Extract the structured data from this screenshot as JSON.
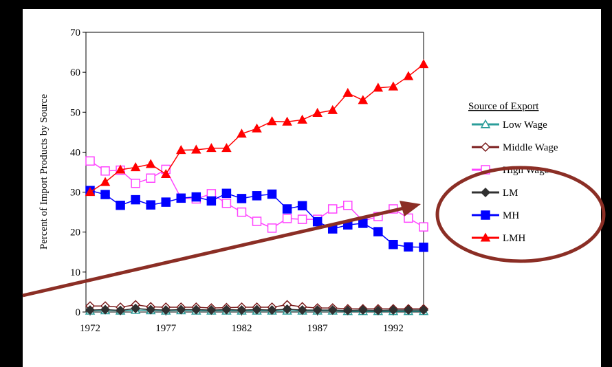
{
  "chart_data": {
    "type": "line",
    "title": "",
    "xlabel": "",
    "ylabel": "Percent of Import Products by Source",
    "xlim": [
      1972,
      1994
    ],
    "ylim": [
      0,
      70
    ],
    "x_ticks": [
      "1972",
      "1977",
      "1982",
      "1987",
      "1992"
    ],
    "y_ticks": [
      "0",
      "10",
      "20",
      "30",
      "40",
      "50",
      "60",
      "70"
    ],
    "x": [
      1972,
      1973,
      1974,
      1975,
      1976,
      1977,
      1978,
      1979,
      1980,
      1981,
      1982,
      1983,
      1984,
      1985,
      1986,
      1987,
      1988,
      1989,
      1990,
      1991,
      1992,
      1993,
      1994
    ],
    "legend_title": "Source of Export",
    "legend_position": "right",
    "series": [
      {
        "name": "Low Wage",
        "marker": "triangle-open",
        "color": "#2a9d9a",
        "values": [
          0.3,
          0.4,
          0.3,
          0.5,
          0.4,
          0.3,
          0.4,
          0.3,
          0.3,
          0.3,
          0.3,
          0.3,
          0.3,
          0.3,
          0.3,
          0.3,
          0.3,
          0.2,
          0.2,
          0.2,
          0.2,
          0.2,
          0.2
        ]
      },
      {
        "name": "Middle Wage",
        "marker": "diamond-open",
        "color": "#7b1d1d",
        "values": [
          1.5,
          1.5,
          1.2,
          1.8,
          1.3,
          1.2,
          1.2,
          1.2,
          1.0,
          1.1,
          1.2,
          1.2,
          1.2,
          1.8,
          1.3,
          1.0,
          1.0,
          0.8,
          0.8,
          0.8,
          0.8,
          0.8,
          0.8
        ]
      },
      {
        "name": "High Wage",
        "marker": "square-open",
        "color": "#ff44ff",
        "values": [
          37.8,
          35.3,
          35.5,
          32.2,
          33.5,
          35.7,
          28.5,
          28.3,
          29.6,
          27.2,
          25.0,
          22.7,
          21.0,
          23.4,
          23.2,
          23.2,
          25.8,
          26.7,
          22.8,
          23.9,
          25.8,
          23.5,
          21.3
        ]
      },
      {
        "name": "LM",
        "marker": "diamond-filled",
        "color": "#303030",
        "values": [
          0.5,
          0.6,
          0.4,
          0.9,
          0.6,
          0.5,
          0.6,
          0.6,
          0.5,
          0.6,
          0.5,
          0.6,
          0.5,
          0.7,
          0.5,
          0.5,
          0.5,
          0.4,
          0.5,
          0.4,
          0.5,
          0.5,
          0.5
        ]
      },
      {
        "name": "MH",
        "marker": "square-filled",
        "color": "#0000ff",
        "values": [
          30.4,
          29.4,
          26.7,
          28.1,
          26.8,
          27.5,
          28.5,
          28.8,
          27.8,
          29.7,
          28.4,
          29.1,
          29.5,
          25.8,
          26.6,
          22.6,
          20.8,
          21.8,
          22.2,
          20.1,
          16.9,
          16.3,
          16.2
        ]
      },
      {
        "name": "LMH",
        "marker": "triangle-filled",
        "color": "#ff0000",
        "values": [
          30.0,
          32.5,
          35.6,
          36.2,
          37.0,
          34.5,
          40.5,
          40.6,
          41.0,
          41.0,
          44.6,
          45.9,
          47.7,
          47.6,
          48.1,
          49.8,
          50.5,
          54.8,
          53.0,
          56.1,
          56.4,
          59.0,
          62.0
        ]
      }
    ],
    "annotations": [
      {
        "type": "ellipse",
        "target": "legend LM, MH, LMH",
        "color": "#8b2e25"
      },
      {
        "type": "arrow",
        "target": "legend LM, MH, LMH",
        "color": "#8b2e25"
      }
    ]
  },
  "style": {
    "background": "#000000",
    "slide_background": "#ffffff",
    "annotation_color": "#8b2e25"
  }
}
